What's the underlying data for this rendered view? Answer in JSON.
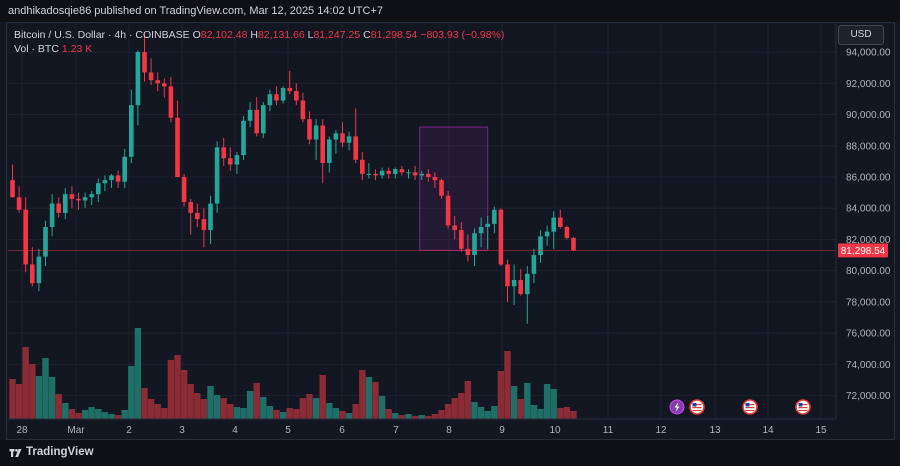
{
  "header": {
    "publisher_line": "andhikadosqie86 published on TradingView.com, Mar 12, 2025 14:02 UTC+7"
  },
  "legend": {
    "symbol": "Bitcoin / U.S. Dollar · 4h · COINBASE",
    "o_label": "O",
    "o_value": "82,102.48",
    "h_label": "H",
    "h_value": "82,131.66",
    "l_label": "L",
    "l_value": "81,247.25",
    "c_label": "C",
    "c_value": "81,298.54",
    "change": "−803.93 (−0.98%)",
    "vol_label": "Vol · BTC",
    "vol_value": "1.23 K"
  },
  "currency": "USD",
  "last_price_label": "81,298.54",
  "footer": {
    "brand": "TradingView"
  },
  "colors": {
    "up": "#26a69a",
    "down": "#f23645",
    "bg": "#131722",
    "grid": "#1e222d",
    "box": "#9c27b0"
  },
  "icons": [
    "lightning-event-icon",
    "us-flag-event-icon",
    "us-flag-event-icon",
    "us-flag-event-icon"
  ],
  "chart_data": {
    "type": "candlestick",
    "interval": "4h",
    "symbol": "BTCUSD",
    "exchange": "COINBASE",
    "y_ticks": [
      "94,000.00",
      "92,000.00",
      "90,000.00",
      "88,000.00",
      "86,000.00",
      "84,000.00",
      "82,000.00",
      "80,000.00",
      "78,000.00",
      "76,000.00",
      "74,000.00",
      "72,000.00"
    ],
    "x_ticks": [
      "28",
      "Mar",
      "2",
      "3",
      "4",
      "5",
      "6",
      "7",
      "8",
      "9",
      "10",
      "11",
      "12",
      "13",
      "14",
      "15"
    ],
    "ylim": [
      70500,
      95800
    ],
    "last_price": 81298.54,
    "rectangle": {
      "t_start": 61.7,
      "t_end": 72.0,
      "price_top": 89200,
      "price_bottom": 81300
    },
    "candles": [
      [
        85800,
        86800,
        84800,
        84700,
        4.0
      ],
      [
        84700,
        85400,
        83700,
        83900,
        3.5
      ],
      [
        83900,
        84700,
        79900,
        80400,
        7.2
      ],
      [
        80400,
        81500,
        79000,
        79200,
        5.5
      ],
      [
        79200,
        81400,
        78700,
        80900,
        4.3
      ],
      [
        80900,
        83200,
        80300,
        82800,
        6.1
      ],
      [
        82800,
        84900,
        82200,
        84300,
        4.2
      ],
      [
        84300,
        84700,
        83400,
        83700,
        2.5
      ],
      [
        83700,
        85300,
        83300,
        84900,
        1.6
      ],
      [
        84900,
        85400,
        84000,
        84600,
        1.0
      ],
      [
        84600,
        85000,
        83900,
        84500,
        0.6
      ],
      [
        84500,
        85000,
        84000,
        84700,
        0.9
      ],
      [
        84700,
        85100,
        84200,
        84900,
        1.2
      ],
      [
        84900,
        85900,
        84400,
        85600,
        1.0
      ],
      [
        85600,
        86100,
        85100,
        85800,
        0.7
      ],
      [
        85800,
        86200,
        85300,
        86100,
        0.5
      ],
      [
        86100,
        86400,
        85300,
        85700,
        0.4
      ],
      [
        85700,
        87800,
        85300,
        87300,
        0.9
      ],
      [
        87300,
        91600,
        86900,
        90600,
        5.3
      ],
      [
        90600,
        94100,
        89300,
        94000,
        9.1
      ],
      [
        94000,
        95200,
        92100,
        92700,
        3.1
      ],
      [
        92700,
        93600,
        91900,
        92200,
        2.0
      ],
      [
        92200,
        92700,
        91500,
        92000,
        1.5
      ],
      [
        92000,
        92300,
        91100,
        91800,
        1.1
      ],
      [
        91800,
        92400,
        89500,
        89800,
        5.9
      ],
      [
        89800,
        90900,
        86000,
        86000,
        6.4
      ],
      [
        86000,
        86200,
        84100,
        84400,
        4.9
      ],
      [
        84400,
        84600,
        82300,
        83700,
        3.5
      ],
      [
        83700,
        84300,
        82800,
        83300,
        2.6
      ],
      [
        83300,
        84000,
        81500,
        82600,
        2.0
      ],
      [
        82600,
        84800,
        81700,
        84300,
        3.3
      ],
      [
        84300,
        88300,
        83700,
        87900,
        2.4
      ],
      [
        87900,
        88500,
        86700,
        87200,
        2.1
      ],
      [
        87200,
        87900,
        86400,
        86800,
        1.5
      ],
      [
        86800,
        87600,
        86200,
        87400,
        1.2
      ],
      [
        87400,
        89900,
        87100,
        89600,
        1.1
      ],
      [
        89600,
        90800,
        89200,
        90300,
        2.8
      ],
      [
        90300,
        91100,
        88600,
        88800,
        3.6
      ],
      [
        88800,
        90800,
        88500,
        90600,
        2.2
      ],
      [
        90600,
        91600,
        90200,
        91300,
        1.3
      ],
      [
        91300,
        91800,
        90600,
        90900,
        0.9
      ],
      [
        90900,
        91800,
        90700,
        91700,
        0.7
      ],
      [
        91700,
        92800,
        91300,
        91500,
        1.1
      ],
      [
        91500,
        92000,
        90600,
        90900,
        1.0
      ],
      [
        90900,
        91400,
        89500,
        89700,
        2.1
      ],
      [
        89700,
        90200,
        88100,
        88400,
        2.5
      ],
      [
        88400,
        89700,
        87100,
        89300,
        2.1
      ],
      [
        89300,
        89700,
        85600,
        86900,
        4.4
      ],
      [
        86900,
        88600,
        86300,
        88400,
        1.6
      ],
      [
        88400,
        89000,
        87500,
        88800,
        1.1
      ],
      [
        88800,
        89500,
        87900,
        88200,
        0.8
      ],
      [
        88200,
        88900,
        87700,
        88600,
        0.6
      ],
      [
        88600,
        90400,
        86900,
        87100,
        1.5
      ],
      [
        87100,
        87600,
        85800,
        86200,
        4.9
      ],
      [
        86200,
        86900,
        85900,
        86200,
        4.2
      ],
      [
        86200,
        86500,
        85800,
        86100,
        3.7
      ],
      [
        86100,
        86600,
        85900,
        86400,
        2.3
      ],
      [
        86400,
        86600,
        85900,
        86200,
        1.0
      ],
      [
        86200,
        86600,
        85900,
        86500,
        0.6
      ],
      [
        86500,
        86700,
        86100,
        86300,
        0.4
      ],
      [
        86300,
        86500,
        85900,
        86300,
        0.5
      ],
      [
        86300,
        86700,
        85800,
        86100,
        0.3
      ],
      [
        86100,
        86400,
        85800,
        86200,
        0.4
      ],
      [
        86200,
        86500,
        85700,
        86000,
        0.3
      ],
      [
        86000,
        86300,
        85300,
        85800,
        0.5
      ],
      [
        85800,
        85900,
        84600,
        84800,
        0.9
      ],
      [
        84800,
        85100,
        82700,
        82900,
        1.5
      ],
      [
        82900,
        83500,
        82000,
        82600,
        2.1
      ],
      [
        82600,
        83100,
        81200,
        81400,
        2.6
      ],
      [
        81400,
        82300,
        80600,
        81000,
        3.8
      ],
      [
        81000,
        82700,
        80300,
        82400,
        1.7
      ],
      [
        82400,
        83400,
        81500,
        82800,
        1.2
      ],
      [
        82800,
        83500,
        81400,
        83000,
        0.8
      ],
      [
        83000,
        84100,
        82400,
        83900,
        1.3
      ],
      [
        83900,
        84000,
        80300,
        80400,
        4.8
      ],
      [
        80400,
        80700,
        78000,
        79000,
        6.8
      ],
      [
        79000,
        80400,
        77800,
        79400,
        3.3
      ],
      [
        79400,
        80100,
        78400,
        78500,
        2.0
      ],
      [
        78500,
        80300,
        76600,
        79800,
        3.6
      ],
      [
        79800,
        81400,
        79200,
        81000,
        1.4
      ],
      [
        81000,
        82600,
        80500,
        82200,
        1.0
      ],
      [
        82200,
        82900,
        81600,
        82500,
        3.5
      ],
      [
        82500,
        83800,
        81400,
        83400,
        3.0
      ],
      [
        83400,
        83900,
        82700,
        82800,
        1.1
      ],
      [
        82800,
        82900,
        82000,
        82100,
        1.2
      ],
      [
        82100,
        82150,
        81250,
        81300,
        0.8
      ]
    ]
  }
}
